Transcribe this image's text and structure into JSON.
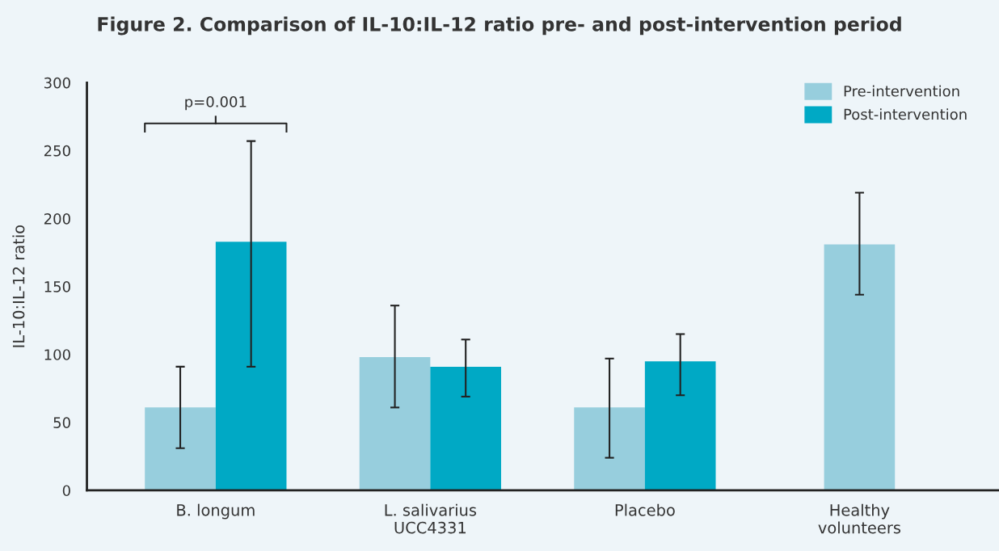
{
  "chart_data": {
    "type": "bar",
    "title": "Figure 2. Comparison of IL-10:IL-12 ratio pre- and post-intervention period",
    "ylabel": "IL-10:IL-12 ratio",
    "categories": [
      "B. longum",
      "L. salivarius\nUCC4331",
      "Placebo",
      "Healthy\nvolunteers"
    ],
    "series": [
      {
        "name": "Pre-intervention",
        "color": "#97cedd",
        "values": [
          61,
          98,
          61,
          181
        ],
        "errors": [
          [
            31,
            91
          ],
          [
            61,
            136
          ],
          [
            24,
            97
          ],
          [
            144,
            219
          ]
        ]
      },
      {
        "name": "Post-intervention",
        "color": "#00a9c5",
        "values": [
          183,
          91,
          95,
          null
        ],
        "errors": [
          [
            91,
            257
          ],
          [
            69,
            111
          ],
          [
            70,
            115
          ],
          null
        ]
      }
    ],
    "ylim": [
      0,
      300
    ],
    "yticks": [
      0,
      50,
      100,
      150,
      200,
      250,
      300
    ],
    "annotations": [
      "p=0.001"
    ],
    "legend": "top right",
    "grid": false
  }
}
